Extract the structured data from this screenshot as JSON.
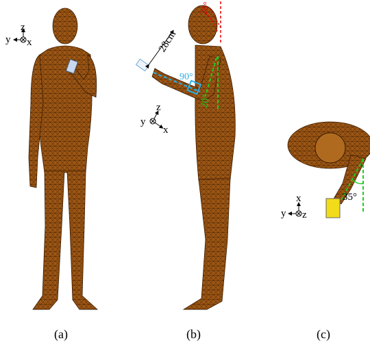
{
  "panels": [
    {
      "caption": "(a)",
      "axis_labels": [
        "z",
        "y",
        "x"
      ]
    },
    {
      "caption": "(b)",
      "axis_labels": [
        "z",
        "y",
        "x"
      ],
      "annotations": [
        "28cm",
        "90°",
        "20°",
        "20°"
      ]
    },
    {
      "caption": "(c)",
      "axis_labels": [
        "x",
        "y",
        "z"
      ],
      "annotations": [
        "35°"
      ]
    }
  ]
}
